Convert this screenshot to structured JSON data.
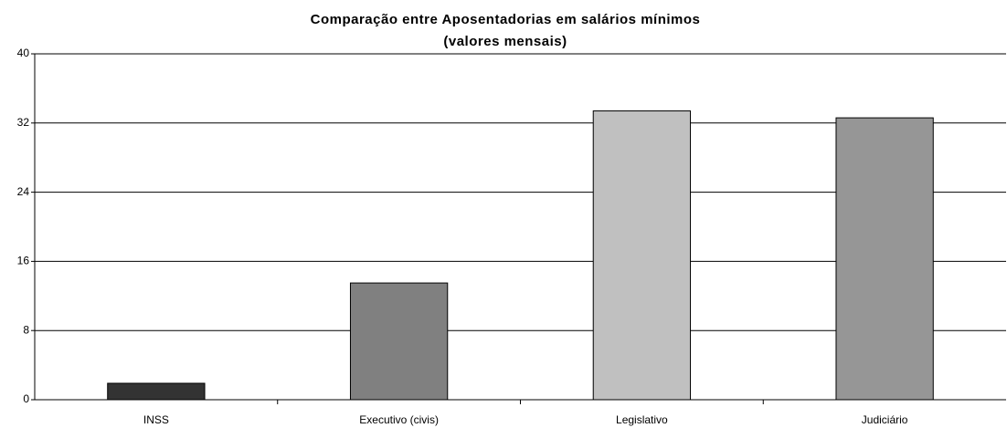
{
  "chart_data": {
    "type": "bar",
    "title": "Comparação entre Aposentadorias em salários mínimos",
    "subtitle": "(valores mensais)",
    "categories": [
      "INSS",
      "Executivo (civis)",
      "Legislativo",
      "Judiciário"
    ],
    "values": [
      1.9,
      13.5,
      33.4,
      32.6
    ],
    "colors": [
      "#333333",
      "#808080",
      "#c0c0c0",
      "#969696"
    ],
    "ylim": [
      0,
      40
    ],
    "yticks": [
      0,
      8,
      16,
      24,
      32,
      40
    ],
    "grid": true
  }
}
